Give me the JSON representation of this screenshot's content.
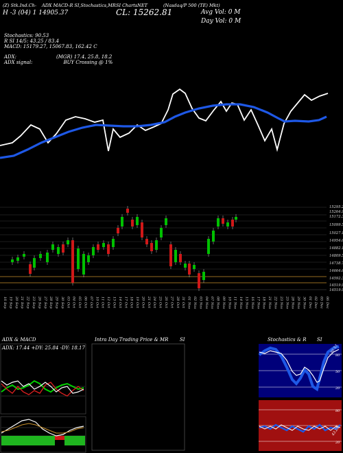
{
  "header": {
    "line1_left": "(Z) Stk.Ind.Ch-",
    "line1_tail": "ADX MACD-R SI,Stochastics,MR",
    "line1_mid": "SI ChartsNET",
    "line1_right": "(Nasdaq/P 500 (TE) Mkt)",
    "h_row": "H  -3  (04)  1  14905.37",
    "close": "CL: 15262.81",
    "avg_vol": "Avg Vol: 0  M",
    "day_vol": "Day Vol: 0  M"
  },
  "stats": {
    "stochastics": "Stochastics: 90.53",
    "rsi": "R           SI 14/5: 43.25 / 83.4",
    "macd": "MACD: 15179.27,  15067.83,  162.42  C",
    "adx_label": "ADX:",
    "adx_values": "(MGR) 17.4,  25.8,  18.2",
    "adx_signal_label": "ADX  signal:",
    "adx_signal_value": "BUY Crossing @ 1%"
  },
  "price_axis": [
    "15295.24",
    "15264.9",
    "15172.31",
    "15099.57",
    "15027.11",
    "14954.62",
    "14882.15",
    "14809.53",
    "14738.77",
    "14664.64",
    "14592.34",
    "14519.93",
    "14519.93"
  ],
  "date_labels": [
    "16 Sep",
    "19 Sep",
    "20 Sep",
    "21 Sep",
    "22 Sep",
    "23 Sep",
    "26 Sep",
    "27 Sep",
    "28 Sep",
    "29 Sep",
    "30 Sep",
    "03 Oct",
    "04 Oct",
    "05 Oct",
    "06 Oct",
    "07 Oct",
    "10 Oct",
    "11 Oct",
    "12 Oct",
    "13 Oct",
    "14 Oct",
    "17 Oct",
    "18 Oct",
    "19 Oct",
    "20 Oct",
    "21 Oct",
    "24 Oct",
    "25 Oct",
    "26 Oct",
    "27 Oct",
    "28 Oct",
    "31 Oct",
    "01 Nov",
    "02 Nov",
    "03 Nov",
    "04 Nov",
    "07 Nov",
    "08 Nov",
    "09 Nov",
    "10 Nov",
    "11 Nov",
    "14 Nov",
    "15 Nov",
    "16 Nov",
    "17 Nov",
    "18 Nov",
    "21 Nov",
    "22 Nov",
    "23 Nov",
    "25 Nov",
    "28 Nov",
    "29 Nov",
    "30 Nov",
    "01 Dec",
    "02 Dec",
    "05 Dec",
    "06 Dec"
  ],
  "panels": {
    "adx_title": "ADX  & MACD",
    "adx_readout": "ADX: 17.44  +DY: 25.84  -DY: 18.17",
    "intraday_title": "Intra  Day Trading Price  & MR",
    "intraday_si": "SI",
    "stoch_title": "Stochastics & R",
    "stoch_si": "SI",
    "stoch_ticks": [
      "80",
      "50",
      "20"
    ],
    "stoch_value": "90.53",
    "rsi_ticks": [
      "80",
      "50",
      "20"
    ],
    "rsi_value": "43.25"
  },
  "colors": {
    "bull": "#00c000",
    "bear": "#d01818",
    "ma": "#1e58e6",
    "accent_orange": "#c8902a"
  }
}
